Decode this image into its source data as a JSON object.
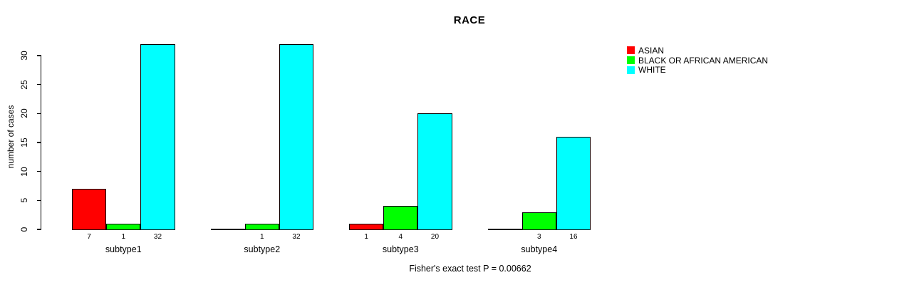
{
  "chart_data": {
    "type": "bar",
    "title": "RACE",
    "ylabel": "number of cases",
    "xlabel": "",
    "categories": [
      "subtype1",
      "subtype2",
      "subtype3",
      "subtype4"
    ],
    "series": [
      {
        "name": "ASIAN",
        "color": "#ff0000",
        "values": [
          7,
          0,
          1,
          0
        ]
      },
      {
        "name": "BLACK OR AFRICAN AMERICAN",
        "color": "#00ff00",
        "values": [
          1,
          1,
          4,
          3
        ]
      },
      {
        "name": "WHITE",
        "color": "#00ffff",
        "values": [
          32,
          32,
          20,
          16
        ]
      }
    ],
    "bar_value_labels_shown": true,
    "yticks": [
      0,
      5,
      10,
      15,
      20,
      25,
      30
    ],
    "ylim": [
      0,
      32
    ],
    "grid": false,
    "legend_position": "right",
    "annotation": "Fisher's exact test P = 0.00662"
  }
}
